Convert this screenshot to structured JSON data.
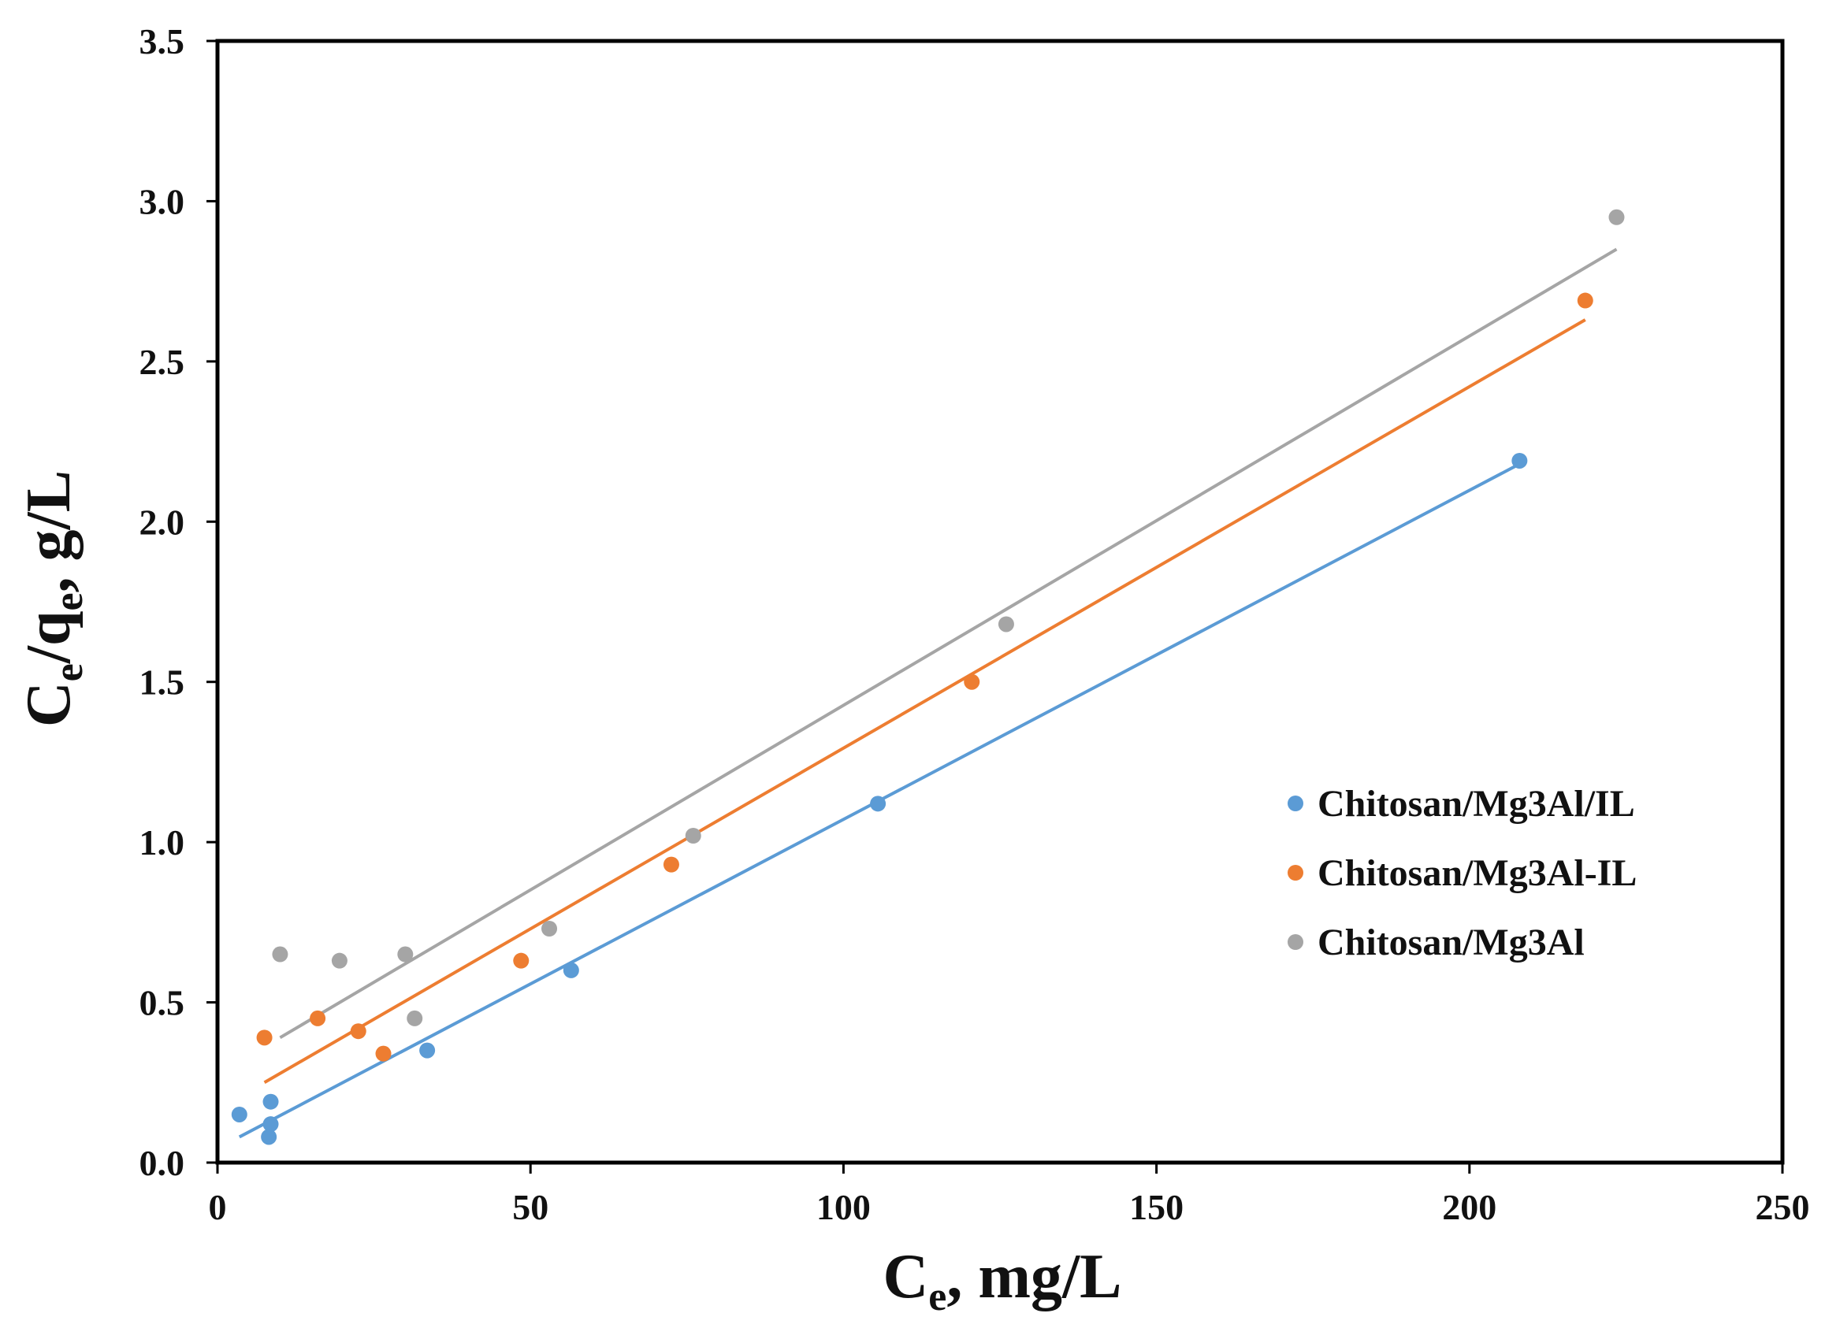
{
  "chart_data": {
    "type": "scatter",
    "title": "",
    "xlabel": {
      "main": "C",
      "sub": "e",
      "rest": ", mg/L"
    },
    "ylabel": {
      "c": "C",
      "c_sub": "e",
      "slash": "/q",
      "q_sub": "e",
      "rest": ", g/L"
    },
    "xlim": [
      0,
      250
    ],
    "ylim": [
      0,
      3.5
    ],
    "x_ticks": [
      0,
      50,
      100,
      150,
      200,
      250
    ],
    "x_tick_labels": [
      "0",
      "50",
      "100",
      "150",
      "200",
      "250"
    ],
    "y_ticks": [
      0,
      0.5,
      1.0,
      1.5,
      2.0,
      2.5,
      3.0,
      3.5
    ],
    "y_tick_labels": [
      "0.0",
      "0.5",
      "1.0",
      "1.5",
      "2.0",
      "2.5",
      "3.0",
      "3.5"
    ],
    "grid": false,
    "legend_position": "right-middle",
    "series": [
      {
        "name": "Chitosan/Mg3Al/IL",
        "color": "#5b9bd5",
        "points": [
          {
            "x": 3.5,
            "y": 0.15
          },
          {
            "x": 8.5,
            "y": 0.19
          },
          {
            "x": 8.5,
            "y": 0.12
          },
          {
            "x": 8.2,
            "y": 0.08
          },
          {
            "x": 33.5,
            "y": 0.35
          },
          {
            "x": 56.5,
            "y": 0.6
          },
          {
            "x": 105.5,
            "y": 1.12
          },
          {
            "x": 208.0,
            "y": 2.19
          }
        ],
        "trendline": {
          "x": [
            3.5,
            208.0
          ],
          "y": [
            0.08,
            2.18
          ]
        }
      },
      {
        "name": "Chitosan/Mg3Al-IL",
        "color": "#ed7d31",
        "points": [
          {
            "x": 7.5,
            "y": 0.39
          },
          {
            "x": 16.0,
            "y": 0.45
          },
          {
            "x": 22.5,
            "y": 0.41
          },
          {
            "x": 26.5,
            "y": 0.34
          },
          {
            "x": 48.5,
            "y": 0.63
          },
          {
            "x": 72.5,
            "y": 0.93
          },
          {
            "x": 120.5,
            "y": 1.5
          },
          {
            "x": 218.5,
            "y": 2.69
          }
        ],
        "trendline": {
          "x": [
            7.5,
            218.5
          ],
          "y": [
            0.25,
            2.63
          ]
        }
      },
      {
        "name": "Chitosan/Mg3Al",
        "color": "#a5a5a5",
        "points": [
          {
            "x": 10.0,
            "y": 0.65
          },
          {
            "x": 19.5,
            "y": 0.63
          },
          {
            "x": 30.0,
            "y": 0.65
          },
          {
            "x": 31.5,
            "y": 0.45
          },
          {
            "x": 53.0,
            "y": 0.73
          },
          {
            "x": 76.0,
            "y": 1.02
          },
          {
            "x": 126.0,
            "y": 1.68
          },
          {
            "x": 223.5,
            "y": 2.95
          }
        ],
        "trendline": {
          "x": [
            10.0,
            223.5
          ],
          "y": [
            0.39,
            2.85
          ]
        }
      }
    ]
  }
}
